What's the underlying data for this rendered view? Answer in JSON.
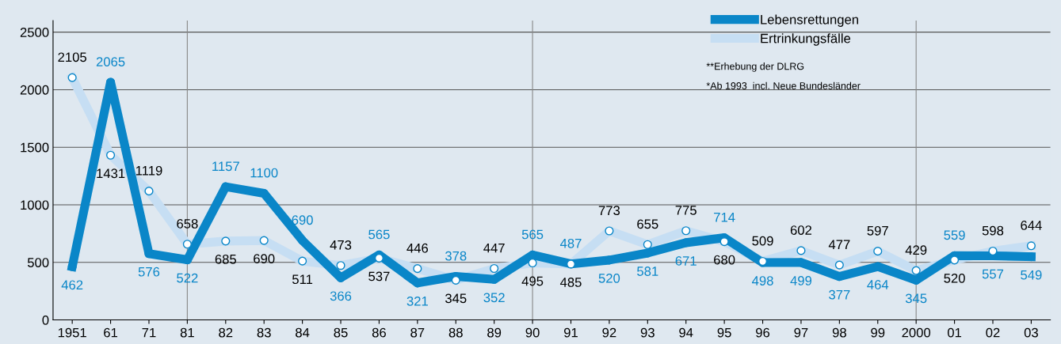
{
  "chart_data": {
    "type": "line",
    "categories": [
      "1951",
      "61",
      "71",
      "81",
      "82",
      "83",
      "84",
      "85",
      "86",
      "87",
      "88",
      "89",
      "90",
      "91",
      "92",
      "93",
      "94",
      "95",
      "96",
      "97",
      "98",
      "99",
      "2000",
      "01",
      "02",
      "03"
    ],
    "series": [
      {
        "name": "Lebensrettungen",
        "color": "#0a86c8",
        "values": [
          462,
          2065,
          576,
          522,
          1157,
          1100,
          690,
          366,
          565,
          321,
          378,
          352,
          565,
          487,
          520,
          581,
          671,
          714,
          498,
          499,
          377,
          464,
          345,
          559,
          557,
          549
        ]
      },
      {
        "name": "Ertrinkungsfälle",
        "color": "#c6def3",
        "values": [
          2105,
          1431,
          1119,
          658,
          685,
          690,
          511,
          473,
          537,
          446,
          345,
          447,
          495,
          485,
          773,
          655,
          775,
          680,
          509,
          602,
          477,
          597,
          429,
          520,
          598,
          644
        ]
      }
    ],
    "ylim": [
      0,
      2600
    ],
    "yticks": [
      0,
      500,
      1000,
      1500,
      2000,
      2500
    ],
    "grid": "y",
    "legend": "top right",
    "data_labels": true,
    "marker": "circle",
    "ref_lines": [
      {
        "axis": "x",
        "value": "81"
      },
      {
        "axis": "x",
        "value": "90"
      },
      {
        "axis": "x",
        "value": "2000"
      }
    ],
    "annotations": [
      "**Erhebung der DLRG",
      "*Ab 1993  incl. Neue Bundesländer"
    ]
  }
}
